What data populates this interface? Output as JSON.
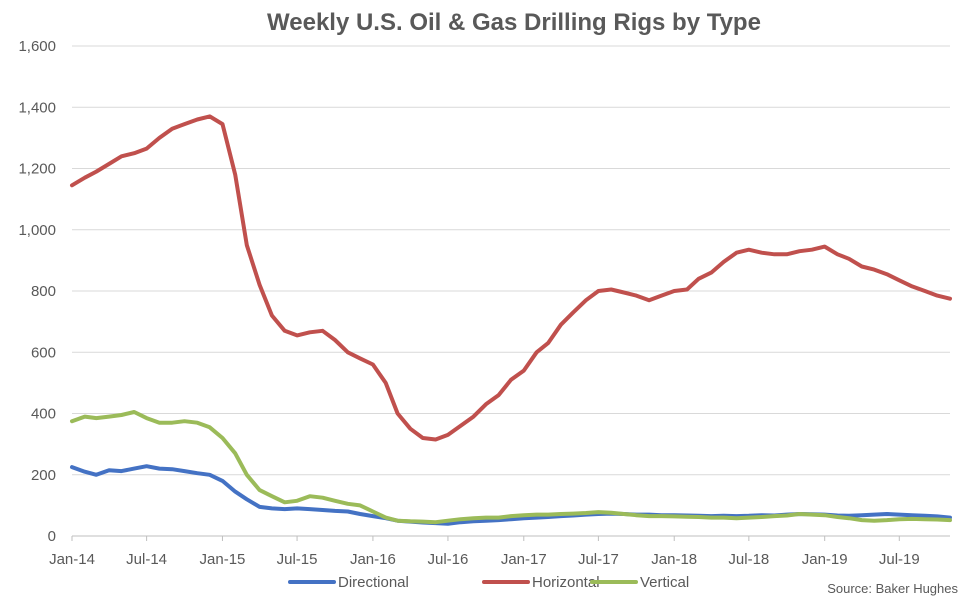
{
  "chart_data": {
    "type": "line",
    "title": "Weekly U.S. Oil & Gas Drilling Rigs by Type",
    "xlabel": "",
    "ylabel": "",
    "ylim": [
      0,
      1600
    ],
    "yticks": [
      "0",
      "200",
      "400",
      "600",
      "800",
      "1,000",
      "1,200",
      "1,400",
      "1,600"
    ],
    "x_start": "2014-01-01",
    "x_end": "2019-11-01",
    "xticks": [
      {
        "label": "Jan-14",
        "date": "2014-01-01"
      },
      {
        "label": "Jul-14",
        "date": "2014-07-01"
      },
      {
        "label": "Jan-15",
        "date": "2015-01-01"
      },
      {
        "label": "Jul-15",
        "date": "2015-07-01"
      },
      {
        "label": "Jan-16",
        "date": "2016-01-01"
      },
      {
        "label": "Jul-16",
        "date": "2016-07-01"
      },
      {
        "label": "Jan-17",
        "date": "2017-01-01"
      },
      {
        "label": "Jul-17",
        "date": "2017-07-01"
      },
      {
        "label": "Jan-18",
        "date": "2018-01-01"
      },
      {
        "label": "Jul-18",
        "date": "2018-07-01"
      },
      {
        "label": "Jan-19",
        "date": "2019-01-01"
      },
      {
        "label": "Jul-19",
        "date": "2019-07-01"
      }
    ],
    "grid": true,
    "legend_position": "bottom",
    "source": "Source: Baker Hughes",
    "series": [
      {
        "name": "Directional",
        "color": "#4472C4",
        "points": [
          [
            "2014-01-01",
            225
          ],
          [
            "2014-02-01",
            210
          ],
          [
            "2014-03-01",
            200
          ],
          [
            "2014-04-01",
            215
          ],
          [
            "2014-05-01",
            212
          ],
          [
            "2014-06-01",
            220
          ],
          [
            "2014-07-01",
            228
          ],
          [
            "2014-08-01",
            220
          ],
          [
            "2014-09-01",
            218
          ],
          [
            "2014-10-01",
            212
          ],
          [
            "2014-11-01",
            205
          ],
          [
            "2014-12-01",
            200
          ],
          [
            "2015-01-01",
            180
          ],
          [
            "2015-02-01",
            145
          ],
          [
            "2015-03-01",
            120
          ],
          [
            "2015-04-01",
            95
          ],
          [
            "2015-05-01",
            90
          ],
          [
            "2015-06-01",
            88
          ],
          [
            "2015-07-01",
            90
          ],
          [
            "2015-08-01",
            88
          ],
          [
            "2015-09-01",
            85
          ],
          [
            "2015-10-01",
            82
          ],
          [
            "2015-11-01",
            80
          ],
          [
            "2015-12-01",
            72
          ],
          [
            "2016-01-01",
            65
          ],
          [
            "2016-02-01",
            58
          ],
          [
            "2016-03-01",
            50
          ],
          [
            "2016-04-01",
            47
          ],
          [
            "2016-05-01",
            44
          ],
          [
            "2016-06-01",
            42
          ],
          [
            "2016-07-01",
            40
          ],
          [
            "2016-08-01",
            45
          ],
          [
            "2016-09-01",
            48
          ],
          [
            "2016-10-01",
            50
          ],
          [
            "2016-11-01",
            52
          ],
          [
            "2016-12-01",
            55
          ],
          [
            "2017-01-01",
            58
          ],
          [
            "2017-02-01",
            60
          ],
          [
            "2017-03-01",
            62
          ],
          [
            "2017-04-01",
            65
          ],
          [
            "2017-05-01",
            67
          ],
          [
            "2017-06-01",
            70
          ],
          [
            "2017-07-01",
            72
          ],
          [
            "2017-08-01",
            73
          ],
          [
            "2017-09-01",
            72
          ],
          [
            "2017-10-01",
            70
          ],
          [
            "2017-11-01",
            70
          ],
          [
            "2017-12-01",
            68
          ],
          [
            "2018-01-01",
            68
          ],
          [
            "2018-02-01",
            67
          ],
          [
            "2018-03-01",
            66
          ],
          [
            "2018-04-01",
            65
          ],
          [
            "2018-05-01",
            66
          ],
          [
            "2018-06-01",
            65
          ],
          [
            "2018-07-01",
            66
          ],
          [
            "2018-08-01",
            68
          ],
          [
            "2018-09-01",
            67
          ],
          [
            "2018-10-01",
            70
          ],
          [
            "2018-11-01",
            72
          ],
          [
            "2018-12-01",
            71
          ],
          [
            "2019-01-01",
            70
          ],
          [
            "2019-02-01",
            67
          ],
          [
            "2019-03-01",
            66
          ],
          [
            "2019-04-01",
            68
          ],
          [
            "2019-05-01",
            70
          ],
          [
            "2019-06-01",
            72
          ],
          [
            "2019-07-01",
            70
          ],
          [
            "2019-08-01",
            68
          ],
          [
            "2019-09-01",
            66
          ],
          [
            "2019-10-01",
            64
          ],
          [
            "2019-11-01",
            60
          ]
        ]
      },
      {
        "name": "Horizontal",
        "color": "#C0504D",
        "points": [
          [
            "2014-01-01",
            1145
          ],
          [
            "2014-02-01",
            1170
          ],
          [
            "2014-03-01",
            1190
          ],
          [
            "2014-04-01",
            1215
          ],
          [
            "2014-05-01",
            1240
          ],
          [
            "2014-06-01",
            1250
          ],
          [
            "2014-07-01",
            1265
          ],
          [
            "2014-08-01",
            1300
          ],
          [
            "2014-09-01",
            1330
          ],
          [
            "2014-10-01",
            1345
          ],
          [
            "2014-11-01",
            1360
          ],
          [
            "2014-12-01",
            1370
          ],
          [
            "2015-01-01",
            1345
          ],
          [
            "2015-02-01",
            1180
          ],
          [
            "2015-03-01",
            950
          ],
          [
            "2015-04-01",
            820
          ],
          [
            "2015-05-01",
            720
          ],
          [
            "2015-06-01",
            670
          ],
          [
            "2015-07-01",
            655
          ],
          [
            "2015-08-01",
            665
          ],
          [
            "2015-09-01",
            670
          ],
          [
            "2015-10-01",
            640
          ],
          [
            "2015-11-01",
            600
          ],
          [
            "2015-12-01",
            580
          ],
          [
            "2016-01-01",
            560
          ],
          [
            "2016-02-01",
            500
          ],
          [
            "2016-03-01",
            400
          ],
          [
            "2016-04-01",
            350
          ],
          [
            "2016-05-01",
            320
          ],
          [
            "2016-06-01",
            315
          ],
          [
            "2016-07-01",
            330
          ],
          [
            "2016-08-01",
            360
          ],
          [
            "2016-09-01",
            390
          ],
          [
            "2016-10-01",
            430
          ],
          [
            "2016-11-01",
            460
          ],
          [
            "2016-12-01",
            510
          ],
          [
            "2017-01-01",
            540
          ],
          [
            "2017-02-01",
            600
          ],
          [
            "2017-03-01",
            630
          ],
          [
            "2017-04-01",
            690
          ],
          [
            "2017-05-01",
            730
          ],
          [
            "2017-06-01",
            770
          ],
          [
            "2017-07-01",
            800
          ],
          [
            "2017-08-01",
            805
          ],
          [
            "2017-09-01",
            795
          ],
          [
            "2017-10-01",
            785
          ],
          [
            "2017-11-01",
            770
          ],
          [
            "2017-12-01",
            785
          ],
          [
            "2018-01-01",
            800
          ],
          [
            "2018-02-01",
            805
          ],
          [
            "2018-03-01",
            840
          ],
          [
            "2018-04-01",
            860
          ],
          [
            "2018-05-01",
            895
          ],
          [
            "2018-06-01",
            925
          ],
          [
            "2018-07-01",
            935
          ],
          [
            "2018-08-01",
            925
          ],
          [
            "2018-09-01",
            920
          ],
          [
            "2018-10-01",
            920
          ],
          [
            "2018-11-01",
            930
          ],
          [
            "2018-12-01",
            935
          ],
          [
            "2019-01-01",
            945
          ],
          [
            "2019-02-01",
            920
          ],
          [
            "2019-03-01",
            905
          ],
          [
            "2019-04-01",
            880
          ],
          [
            "2019-05-01",
            870
          ],
          [
            "2019-06-01",
            855
          ],
          [
            "2019-07-01",
            835
          ],
          [
            "2019-08-01",
            815
          ],
          [
            "2019-09-01",
            800
          ],
          [
            "2019-10-01",
            785
          ],
          [
            "2019-11-01",
            775
          ]
        ]
      },
      {
        "name": "Vertical",
        "color": "#9BBB59",
        "points": [
          [
            "2014-01-01",
            375
          ],
          [
            "2014-02-01",
            390
          ],
          [
            "2014-03-01",
            385
          ],
          [
            "2014-04-01",
            390
          ],
          [
            "2014-05-01",
            395
          ],
          [
            "2014-06-01",
            405
          ],
          [
            "2014-07-01",
            385
          ],
          [
            "2014-08-01",
            370
          ],
          [
            "2014-09-01",
            370
          ],
          [
            "2014-10-01",
            375
          ],
          [
            "2014-11-01",
            370
          ],
          [
            "2014-12-01",
            355
          ],
          [
            "2015-01-01",
            320
          ],
          [
            "2015-02-01",
            270
          ],
          [
            "2015-03-01",
            200
          ],
          [
            "2015-04-01",
            150
          ],
          [
            "2015-05-01",
            130
          ],
          [
            "2015-06-01",
            110
          ],
          [
            "2015-07-01",
            115
          ],
          [
            "2015-08-01",
            130
          ],
          [
            "2015-09-01",
            125
          ],
          [
            "2015-10-01",
            115
          ],
          [
            "2015-11-01",
            105
          ],
          [
            "2015-12-01",
            100
          ],
          [
            "2016-01-01",
            80
          ],
          [
            "2016-02-01",
            60
          ],
          [
            "2016-03-01",
            50
          ],
          [
            "2016-04-01",
            48
          ],
          [
            "2016-05-01",
            47
          ],
          [
            "2016-06-01",
            45
          ],
          [
            "2016-07-01",
            50
          ],
          [
            "2016-08-01",
            55
          ],
          [
            "2016-09-01",
            58
          ],
          [
            "2016-10-01",
            60
          ],
          [
            "2016-11-01",
            60
          ],
          [
            "2016-12-01",
            65
          ],
          [
            "2017-01-01",
            68
          ],
          [
            "2017-02-01",
            70
          ],
          [
            "2017-03-01",
            70
          ],
          [
            "2017-04-01",
            72
          ],
          [
            "2017-05-01",
            73
          ],
          [
            "2017-06-01",
            75
          ],
          [
            "2017-07-01",
            78
          ],
          [
            "2017-08-01",
            76
          ],
          [
            "2017-09-01",
            72
          ],
          [
            "2017-10-01",
            68
          ],
          [
            "2017-11-01",
            65
          ],
          [
            "2017-12-01",
            65
          ],
          [
            "2018-01-01",
            64
          ],
          [
            "2018-02-01",
            63
          ],
          [
            "2018-03-01",
            62
          ],
          [
            "2018-04-01",
            60
          ],
          [
            "2018-05-01",
            60
          ],
          [
            "2018-06-01",
            58
          ],
          [
            "2018-07-01",
            60
          ],
          [
            "2018-08-01",
            62
          ],
          [
            "2018-09-01",
            65
          ],
          [
            "2018-10-01",
            67
          ],
          [
            "2018-11-01",
            72
          ],
          [
            "2018-12-01",
            70
          ],
          [
            "2019-01-01",
            68
          ],
          [
            "2019-02-01",
            62
          ],
          [
            "2019-03-01",
            58
          ],
          [
            "2019-04-01",
            52
          ],
          [
            "2019-05-01",
            50
          ],
          [
            "2019-06-01",
            52
          ],
          [
            "2019-07-01",
            55
          ],
          [
            "2019-08-01",
            56
          ],
          [
            "2019-09-01",
            55
          ],
          [
            "2019-10-01",
            54
          ],
          [
            "2019-11-01",
            52
          ]
        ]
      }
    ]
  }
}
